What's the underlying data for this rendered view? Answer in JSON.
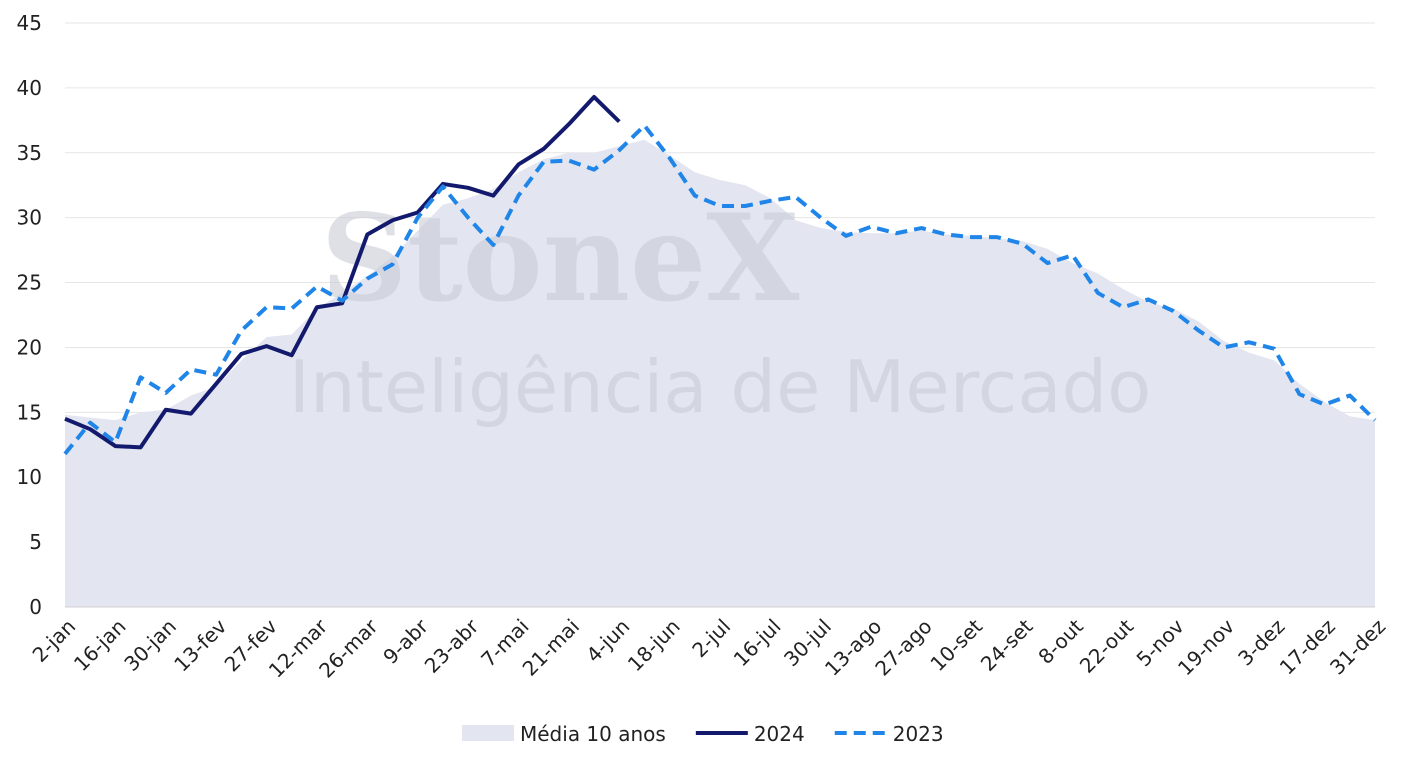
{
  "chart_data": {
    "type": "line",
    "watermark": [
      "StoneX",
      "Inteligência de Mercado"
    ],
    "categories": [
      "2-jan",
      null,
      "16-jan",
      null,
      "30-jan",
      null,
      "13-fev",
      null,
      "27-fev",
      null,
      "12-mar",
      null,
      "26-mar",
      null,
      "9-abr",
      null,
      "23-abr",
      null,
      "7-mai",
      null,
      "21-mai",
      null,
      "4-jun",
      null,
      "18-jun",
      null,
      "2-jul",
      null,
      "16-jul",
      null,
      "30-jul",
      null,
      "13-ago",
      null,
      "27-ago",
      null,
      "10-set",
      null,
      "24-set",
      null,
      "8-out",
      null,
      "22-out",
      null,
      "5-nov",
      null,
      "19-nov",
      null,
      "3-dez",
      null,
      "17-dez",
      null,
      "31-dez"
    ],
    "series": [
      {
        "name": "Média 10 anos",
        "style": "area",
        "color": "#e3e6f0",
        "values": [
          14.8,
          14.6,
          14.4,
          15.0,
          15.2,
          16.3,
          17.0,
          19.0,
          20.8,
          21.0,
          23.0,
          24.2,
          25.5,
          27.0,
          29.0,
          31.0,
          31.5,
          32.2,
          33.5,
          34.5,
          35.0,
          35.0,
          35.5,
          36.0,
          34.8,
          33.5,
          32.9,
          32.5,
          31.5,
          29.8,
          29.2,
          28.9,
          28.8,
          28.8,
          29.0,
          28.7,
          28.6,
          28.4,
          28.2,
          27.6,
          26.5,
          25.7,
          24.5,
          23.5,
          23.0,
          22.0,
          20.5,
          19.6,
          19.0,
          17.2,
          15.8,
          14.7,
          14.4
        ]
      },
      {
        "name": "2024",
        "style": "solid",
        "color": "#131a6e",
        "values": [
          14.5,
          13.7,
          12.4,
          12.3,
          15.2,
          14.9,
          17.2,
          19.5,
          20.1,
          19.4,
          23.1,
          23.4,
          28.7,
          29.8,
          30.4,
          32.6,
          32.3,
          31.7,
          34.1,
          35.3,
          37.2,
          39.3,
          37.4,
          null,
          null,
          null,
          null,
          null,
          null,
          null,
          null,
          null,
          null,
          null,
          null,
          null,
          null,
          null,
          null,
          null,
          null,
          null,
          null,
          null,
          null,
          null,
          null,
          null,
          null,
          null,
          null,
          null,
          null
        ]
      },
      {
        "name": "2023",
        "style": "dashed",
        "color": "#1f85e8",
        "values": [
          11.8,
          14.2,
          12.7,
          17.7,
          16.5,
          18.3,
          17.9,
          21.3,
          23.1,
          23.0,
          24.7,
          23.6,
          25.3,
          26.4,
          30.0,
          32.4,
          30.0,
          27.9,
          31.7,
          34.3,
          34.4,
          33.7,
          35.2,
          37.1,
          34.6,
          31.7,
          30.9,
          30.9,
          31.3,
          31.6,
          30.0,
          28.6,
          29.3,
          28.8,
          29.2,
          28.7,
          28.5,
          28.5,
          28.0,
          26.5,
          27.1,
          24.2,
          23.1,
          23.7,
          22.8,
          21.3,
          20.0,
          20.4,
          19.9,
          16.4,
          15.6,
          16.3,
          14.4
        ]
      }
    ],
    "ylim": [
      0,
      45
    ],
    "yticks": [
      0,
      5,
      10,
      15,
      20,
      25,
      30,
      35,
      40,
      45
    ],
    "grid": true,
    "legend": "bottom"
  }
}
